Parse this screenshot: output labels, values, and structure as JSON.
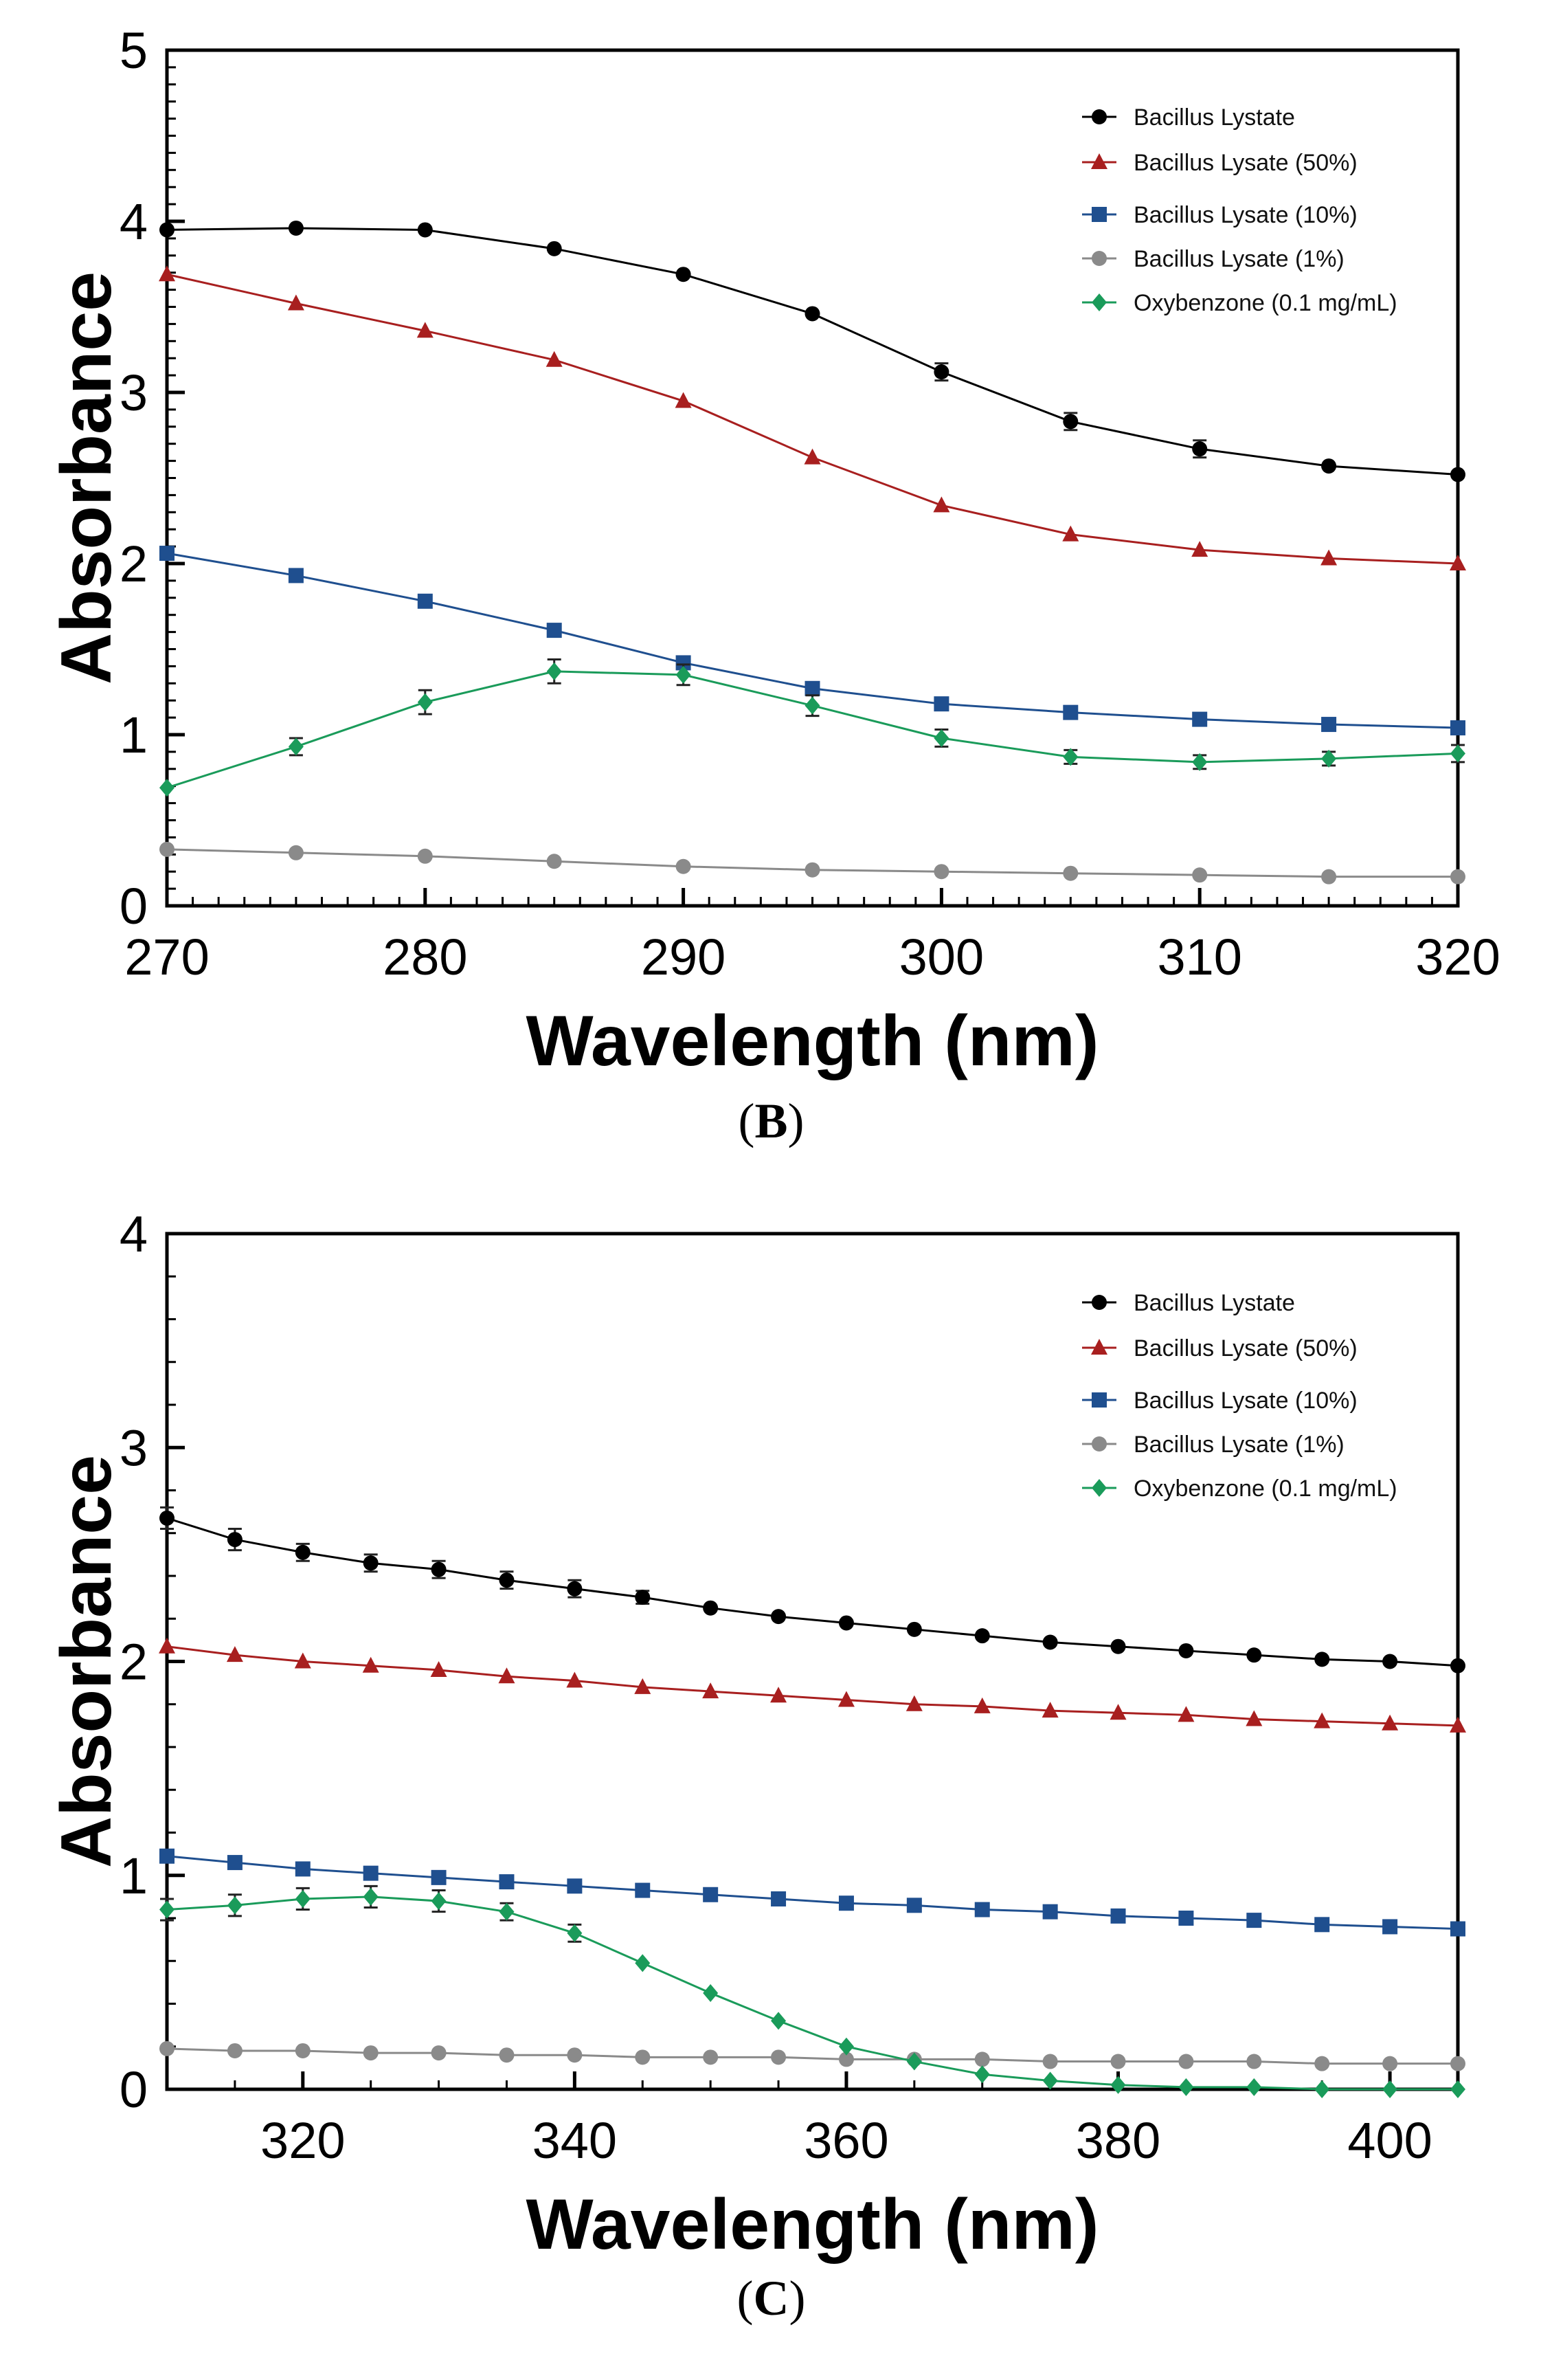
{
  "chart_data": [
    {
      "type": "line",
      "panel_label": {
        "open": "(",
        "letter": "B",
        "close": ")"
      },
      "xlabel": "Wavelength (nm)",
      "ylabel": "Absorbance",
      "xlim": [
        270,
        320
      ],
      "ylim": [
        0,
        5
      ],
      "xticks": [
        270,
        280,
        290,
        300,
        310,
        320
      ],
      "yticks": [
        0,
        1,
        2,
        3,
        4,
        5
      ],
      "x_minor_step": 1,
      "y_minor_step": 0.1,
      "legend_position": "top-right",
      "series": [
        {
          "name": "Bacillus Lystate",
          "color": "#000000",
          "marker": "circle",
          "x": [
            270,
            275,
            280,
            285,
            290,
            295,
            300,
            305,
            310,
            315,
            320
          ],
          "y": [
            3.95,
            3.96,
            3.95,
            3.84,
            3.69,
            3.46,
            3.12,
            2.83,
            2.67,
            2.57,
            2.52
          ],
          "err": [
            0,
            0,
            0,
            0,
            0,
            0,
            0.05,
            0.05,
            0.05,
            0,
            0
          ]
        },
        {
          "name": "Bacillus Lysate (50%)",
          "color": "#a81f1f",
          "marker": "triangle",
          "x": [
            270,
            275,
            280,
            285,
            290,
            295,
            300,
            305,
            310,
            315,
            320
          ],
          "y": [
            3.69,
            3.52,
            3.36,
            3.19,
            2.95,
            2.62,
            2.34,
            2.17,
            2.08,
            2.03,
            2.0
          ],
          "err": [
            0,
            0,
            0,
            0,
            0,
            0,
            0,
            0,
            0,
            0,
            0
          ]
        },
        {
          "name": "Bacillus Lysate (10%)",
          "color": "#1f4f8f",
          "marker": "square",
          "x": [
            270,
            275,
            280,
            285,
            290,
            295,
            300,
            305,
            310,
            315,
            320
          ],
          "y": [
            2.06,
            1.93,
            1.78,
            1.61,
            1.42,
            1.27,
            1.18,
            1.13,
            1.09,
            1.06,
            1.04
          ],
          "err": [
            0,
            0,
            0,
            0,
            0,
            0,
            0,
            0,
            0,
            0,
            0
          ]
        },
        {
          "name": "Bacillus Lysate (1%)",
          "color": "#8a8a8a",
          "marker": "circle",
          "x": [
            270,
            275,
            280,
            285,
            290,
            295,
            300,
            305,
            310,
            315,
            320
          ],
          "y": [
            0.33,
            0.31,
            0.29,
            0.26,
            0.23,
            0.21,
            0.2,
            0.19,
            0.18,
            0.17,
            0.17
          ],
          "err": [
            0,
            0,
            0,
            0,
            0,
            0,
            0,
            0,
            0,
            0,
            0
          ]
        },
        {
          "name": "Oxybenzone (0.1 mg/mL)",
          "color": "#1a9b5a",
          "marker": "diamond",
          "x": [
            270,
            275,
            280,
            285,
            290,
            295,
            300,
            305,
            310,
            315,
            320
          ],
          "y": [
            0.69,
            0.93,
            1.19,
            1.37,
            1.35,
            1.17,
            0.98,
            0.87,
            0.84,
            0.86,
            0.89
          ],
          "err": [
            0,
            0.05,
            0.07,
            0.07,
            0.06,
            0.06,
            0.05,
            0.04,
            0.04,
            0.04,
            0.05
          ]
        }
      ]
    },
    {
      "type": "line",
      "panel_label": {
        "open": "(",
        "letter": "C",
        "close": ")"
      },
      "xlabel": "Wavelength (nm)",
      "ylabel": "Absorbance",
      "xlim": [
        310,
        405
      ],
      "ylim": [
        0,
        4
      ],
      "xticks": [
        320,
        340,
        360,
        380,
        400
      ],
      "yticks": [
        0,
        1,
        2,
        3,
        4
      ],
      "x_minor_step": 5,
      "y_minor_step": 0.2,
      "legend_position": "top-right",
      "series": [
        {
          "name": "Bacillus Lystate",
          "color": "#000000",
          "marker": "circle",
          "x": [
            310,
            315,
            320,
            325,
            330,
            335,
            340,
            345,
            350,
            355,
            360,
            365,
            370,
            375,
            380,
            385,
            390,
            395,
            400,
            405
          ],
          "y": [
            2.67,
            2.57,
            2.51,
            2.46,
            2.43,
            2.38,
            2.34,
            2.3,
            2.25,
            2.21,
            2.18,
            2.15,
            2.12,
            2.09,
            2.07,
            2.05,
            2.03,
            2.01,
            2.0,
            1.98
          ],
          "err": [
            0.05,
            0.05,
            0.04,
            0.04,
            0.04,
            0.04,
            0.04,
            0.03,
            0,
            0,
            0,
            0,
            0,
            0,
            0,
            0,
            0,
            0,
            0,
            0
          ]
        },
        {
          "name": "Bacillus Lysate (50%)",
          "color": "#a81f1f",
          "marker": "triangle",
          "x": [
            310,
            315,
            320,
            325,
            330,
            335,
            340,
            345,
            350,
            355,
            360,
            365,
            370,
            375,
            380,
            385,
            390,
            395,
            400,
            405
          ],
          "y": [
            2.07,
            2.03,
            2.0,
            1.98,
            1.96,
            1.93,
            1.91,
            1.88,
            1.86,
            1.84,
            1.82,
            1.8,
            1.79,
            1.77,
            1.76,
            1.75,
            1.73,
            1.72,
            1.71,
            1.7
          ],
          "err": [
            0,
            0,
            0,
            0,
            0,
            0,
            0,
            0,
            0,
            0,
            0,
            0,
            0,
            0,
            0,
            0,
            0,
            0,
            0,
            0
          ]
        },
        {
          "name": "Bacillus Lysate (10%)",
          "color": "#1f4f8f",
          "marker": "square",
          "x": [
            310,
            315,
            320,
            325,
            330,
            335,
            340,
            345,
            350,
            355,
            360,
            365,
            370,
            375,
            380,
            385,
            390,
            395,
            400,
            405
          ],
          "y": [
            1.09,
            1.06,
            1.03,
            1.01,
            0.99,
            0.97,
            0.95,
            0.93,
            0.91,
            0.89,
            0.87,
            0.86,
            0.84,
            0.83,
            0.81,
            0.8,
            0.79,
            0.77,
            0.76,
            0.75
          ],
          "err": [
            0,
            0,
            0,
            0,
            0,
            0,
            0,
            0,
            0,
            0,
            0,
            0,
            0,
            0,
            0,
            0,
            0,
            0,
            0,
            0
          ]
        },
        {
          "name": "Bacillus Lysate (1%)",
          "color": "#8a8a8a",
          "marker": "circle",
          "x": [
            310,
            315,
            320,
            325,
            330,
            335,
            340,
            345,
            350,
            355,
            360,
            365,
            370,
            375,
            380,
            385,
            390,
            395,
            400,
            405
          ],
          "y": [
            0.19,
            0.18,
            0.18,
            0.17,
            0.17,
            0.16,
            0.16,
            0.15,
            0.15,
            0.15,
            0.14,
            0.14,
            0.14,
            0.13,
            0.13,
            0.13,
            0.13,
            0.12,
            0.12,
            0.12
          ],
          "err": [
            0,
            0,
            0,
            0,
            0,
            0,
            0,
            0,
            0,
            0,
            0,
            0,
            0,
            0,
            0,
            0,
            0,
            0,
            0,
            0
          ]
        },
        {
          "name": "Oxybenzone (0.1 mg/mL)",
          "color": "#1a9b5a",
          "marker": "diamond",
          "x": [
            310,
            315,
            320,
            325,
            330,
            335,
            340,
            345,
            350,
            355,
            360,
            365,
            370,
            375,
            380,
            385,
            390,
            395,
            400,
            405
          ],
          "y": [
            0.84,
            0.86,
            0.89,
            0.9,
            0.88,
            0.83,
            0.73,
            0.59,
            0.45,
            0.32,
            0.2,
            0.13,
            0.07,
            0.04,
            0.02,
            0.01,
            0.01,
            0.0,
            0.0,
            0.0
          ],
          "err": [
            0.05,
            0.05,
            0.05,
            0.05,
            0.05,
            0.04,
            0.04,
            0,
            0,
            0,
            0,
            0,
            0,
            0,
            0,
            0,
            0,
            0,
            0,
            0
          ]
        }
      ]
    }
  ]
}
